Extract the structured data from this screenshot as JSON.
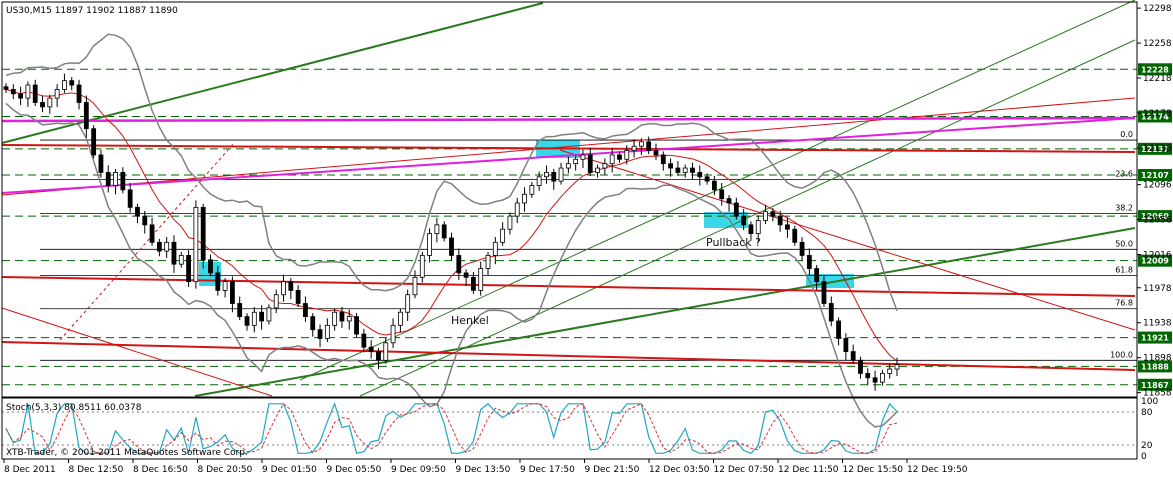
{
  "chart_data": {
    "type": "candlestick",
    "symbol_header": "US30,M15  11897 11902 11887 11890",
    "copyright": "XTB-Trader, © 2001-2011 MetaQuotes Software Corp.",
    "price_axis": {
      "ticks": [
        "12298",
        "12258",
        "12218",
        "12178",
        "12138",
        "12096",
        "12056",
        "12016",
        "11978",
        "11938",
        "11898",
        "11858"
      ],
      "range": [
        11853,
        12305
      ]
    },
    "price_levels": [
      {
        "label": "12228",
        "value": 12228,
        "color": "#006400"
      },
      {
        "label": "12174",
        "value": 12174,
        "color": "#006400"
      },
      {
        "label": "12137",
        "value": 12137,
        "color": "#006400"
      },
      {
        "label": "12107",
        "value": 12107,
        "color": "#006400"
      },
      {
        "label": "12060",
        "value": 12060,
        "color": "#006400"
      },
      {
        "label": "12009",
        "value": 12009,
        "color": "#006400"
      },
      {
        "label": "11921",
        "value": 11921,
        "color": "#006400"
      },
      {
        "label": "11888",
        "value": 11888,
        "color": "#006400"
      },
      {
        "label": "11867",
        "value": 11867,
        "color": "#006400"
      }
    ],
    "fibonacci_levels": [
      {
        "label": "0.0",
        "value": 12147
      },
      {
        "label": "23.6",
        "value": 12102
      },
      {
        "label": "38.2",
        "value": 12063
      },
      {
        "label": "50.0",
        "value": 12022
      },
      {
        "label": "61.8",
        "value": 11992
      },
      {
        "label": "76.8",
        "value": 11954
      },
      {
        "label": "100.0",
        "value": 11895
      }
    ],
    "time_axis": [
      "8 Dec 2011",
      "8 Dec 12:50",
      "8 Dec 16:50",
      "8 Dec 20:50",
      "9 Dec 01:50",
      "9 Dec 05:50",
      "9 Dec 09:50",
      "9 Dec 13:50",
      "9 Dec 17:50",
      "9 Dec 21:50",
      "12 Dec 03:50",
      "12 Dec 07:50",
      "12 Dec 11:50",
      "12 Dec 15:50",
      "12 Dec 19:50"
    ],
    "annotations": [
      "Pullback ?",
      "Henkel"
    ],
    "close_series": [
      12205,
      12200,
      12195,
      12210,
      12190,
      12185,
      12195,
      12205,
      12215,
      12210,
      12190,
      12160,
      12130,
      12110,
      12095,
      12110,
      12090,
      12070,
      12060,
      12050,
      12030,
      12020,
      12030,
      12005,
      12015,
      11985,
      12070,
      12010,
      11995,
      11975,
      11985,
      11960,
      11945,
      11935,
      11950,
      11940,
      11955,
      11970,
      11985,
      11975,
      11960,
      11945,
      11930,
      11920,
      11935,
      11950,
      11940,
      11945,
      11925,
      11910,
      11905,
      11895,
      11915,
      11935,
      11950,
      11970,
      11990,
      12015,
      12040,
      12050,
      12035,
      12015,
      11995,
      11990,
      11975,
      12000,
      12015,
      12030,
      12045,
      12060,
      12075,
      12085,
      12095,
      12105,
      12110,
      12100,
      12115,
      12120,
      12125,
      12130,
      12110,
      12115,
      12120,
      12130,
      12125,
      12135,
      12140,
      12145,
      12135,
      12130,
      12120,
      12115,
      12110,
      12115,
      12110,
      12105,
      12100,
      12090,
      12080,
      12075,
      12060,
      12050,
      12040,
      12055,
      12065,
      12060,
      12050,
      12045,
      12030,
      12015,
      12000,
      11985,
      11960,
      11940,
      11920,
      11905,
      11895,
      11880,
      11875,
      11870,
      11880,
      11885,
      11890
    ],
    "stochastic": {
      "label": "Stoch(5,3,3) 80.8511 60.0378",
      "main_value": 80.8511,
      "signal_value": 60.0378,
      "levels": [
        "100",
        "80",
        "20",
        "0"
      ],
      "main_color": "#1fa6c4",
      "signal_color": "#e03030"
    },
    "colors": {
      "background": "#ffffff",
      "candle": "#000000",
      "level": "#006400",
      "trend_green": "#2a7a1f",
      "trend_red": "#d21414",
      "magenta": "#e020e0",
      "bollinger": "#808080",
      "ma": "#d21414",
      "highlight": "#38d8e8"
    }
  }
}
